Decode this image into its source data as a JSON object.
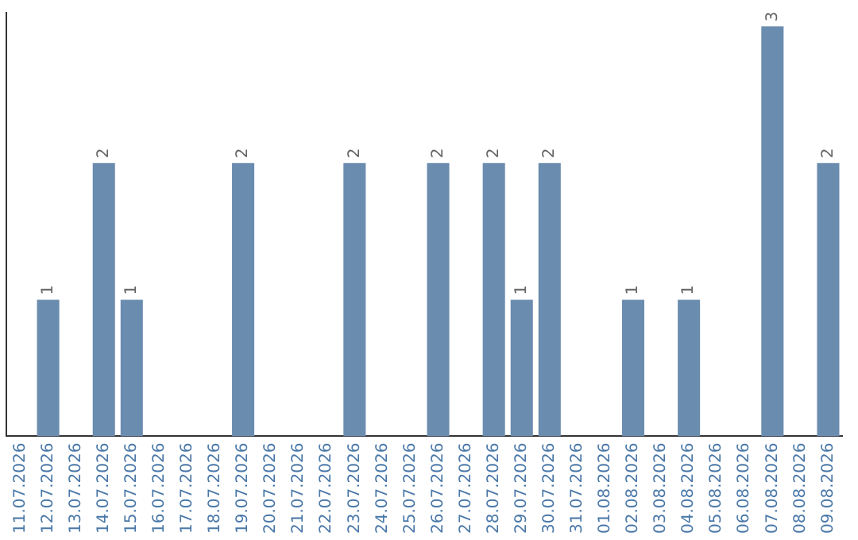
{
  "chart_data": {
    "type": "bar",
    "categories": [
      "11.07.2026",
      "12.07.2026",
      "13.07.2026",
      "14.07.2026",
      "15.07.2026",
      "16.07.2026",
      "17.07.2026",
      "18.07.2026",
      "19.07.2026",
      "20.07.2026",
      "21.07.2026",
      "22.07.2026",
      "23.07.2026",
      "24.07.2026",
      "25.07.2026",
      "26.07.2026",
      "27.07.2026",
      "28.07.2026",
      "29.07.2026",
      "30.07.2026",
      "31.07.2026",
      "01.08.2026",
      "02.08.2026",
      "03.08.2026",
      "04.08.2026",
      "05.08.2026",
      "06.08.2026",
      "07.08.2026",
      "08.08.2026",
      "09.08.2026"
    ],
    "values": [
      0,
      1,
      0,
      2,
      1,
      0,
      0,
      0,
      2,
      0,
      0,
      0,
      2,
      0,
      0,
      2,
      0,
      2,
      1,
      2,
      0,
      0,
      1,
      0,
      1,
      0,
      0,
      3,
      0,
      2
    ],
    "value_labels": [
      null,
      "1",
      null,
      "2",
      "1",
      null,
      null,
      null,
      "2",
      null,
      null,
      null,
      "2",
      null,
      null,
      "2",
      null,
      "2",
      "1",
      "2",
      null,
      null,
      "1",
      null,
      "1",
      null,
      null,
      "3",
      null,
      "2"
    ],
    "color": "#6a8caf",
    "ylim": [
      0,
      3.1
    ],
    "tick_labels": "x",
    "grid": false,
    "legend": false
  }
}
